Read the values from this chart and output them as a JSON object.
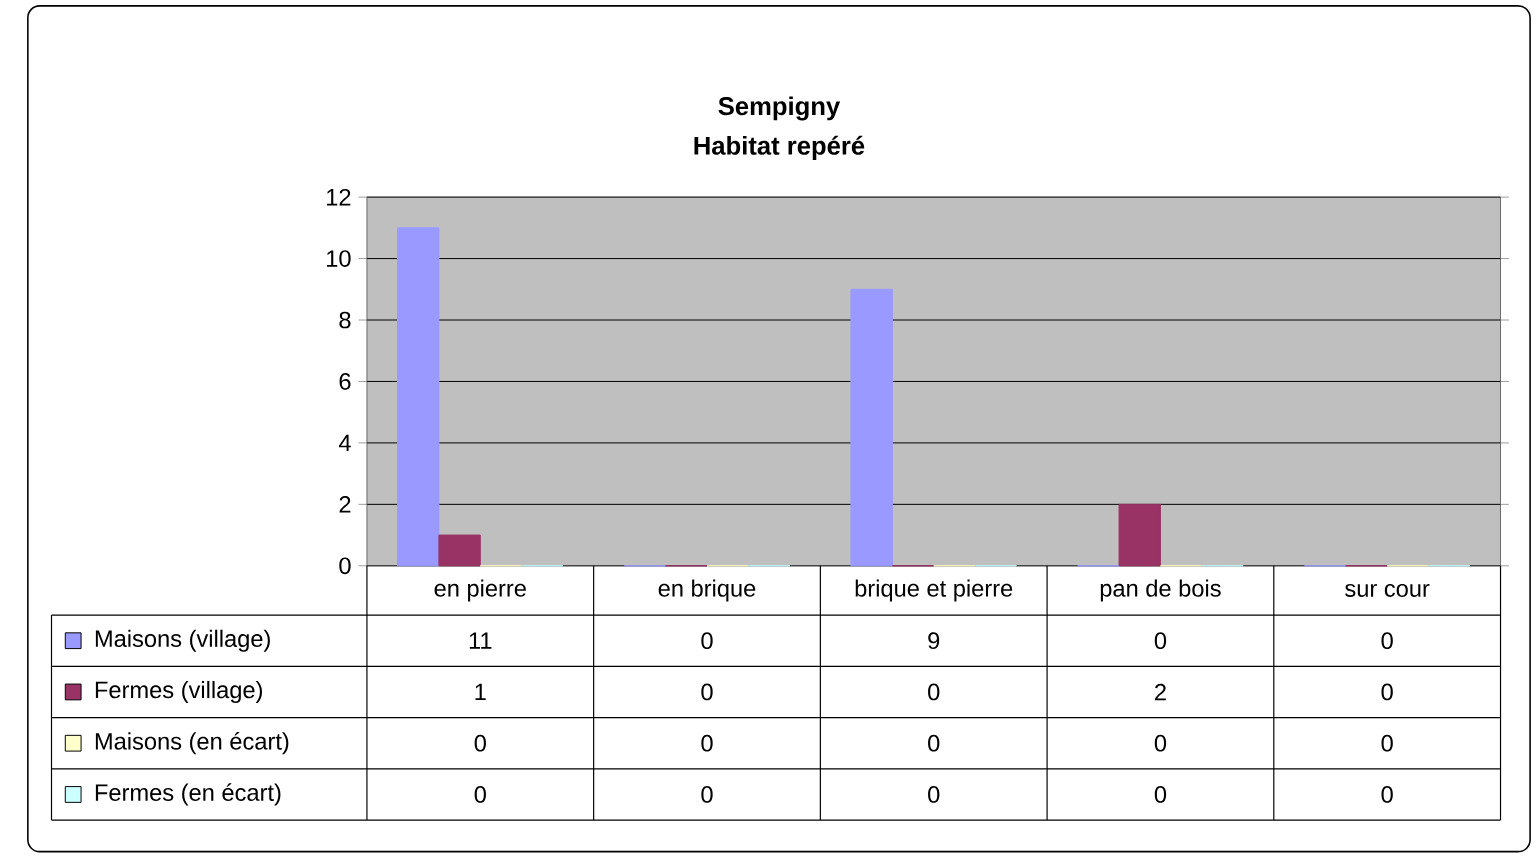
{
  "chart_data": {
    "type": "bar",
    "title": "Sempigny",
    "subtitle": "Habitat repéré",
    "categories": [
      "en pierre",
      "en brique",
      "brique et pierre",
      "pan de bois",
      "sur cour"
    ],
    "series": [
      {
        "name": "Maisons (village)",
        "color": "#9999ff",
        "values": [
          11,
          0,
          9,
          0,
          0
        ]
      },
      {
        "name": "Fermes (village)",
        "color": "#993366",
        "values": [
          1,
          0,
          0,
          2,
          0
        ]
      },
      {
        "name": "Maisons (en écart)",
        "color": "#ffffcc",
        "values": [
          0,
          0,
          0,
          0,
          0
        ]
      },
      {
        "name": "Fermes (en écart)",
        "color": "#ccffff",
        "values": [
          0,
          0,
          0,
          0,
          0
        ]
      }
    ],
    "ylim": [
      0,
      12
    ],
    "yticks": [
      0,
      2,
      4,
      6,
      8,
      10,
      12
    ],
    "grid": "y",
    "legend": "bottom",
    "data_labels": true
  }
}
